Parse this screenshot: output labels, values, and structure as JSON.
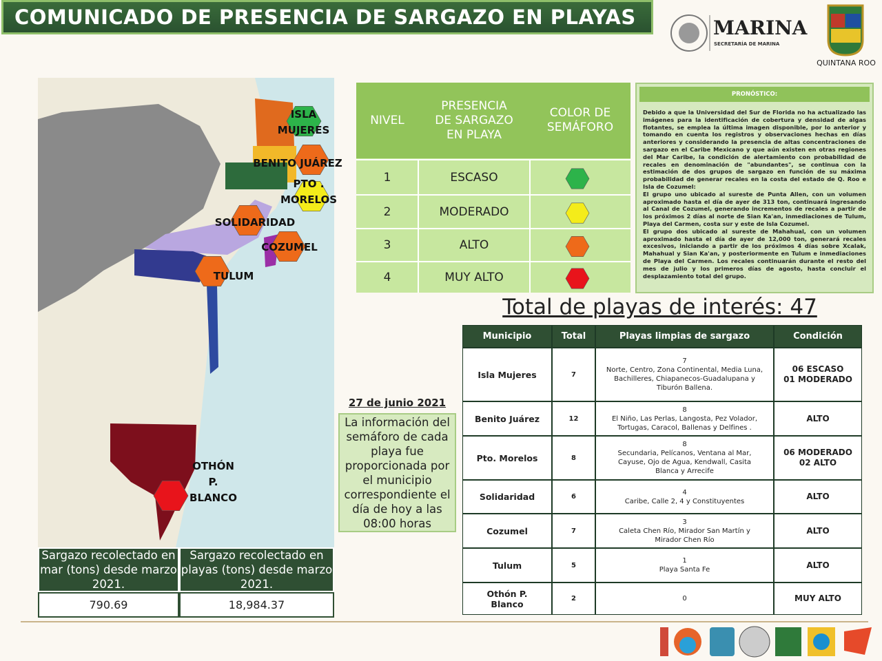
{
  "header": {
    "title": "COMUNICADO DE PRESENCIA DE SARGAZO EN PLAYAS",
    "marina": "MARINA",
    "marina_sub": "SECRETARÍA DE MARINA",
    "state": "QUINTANA ROO"
  },
  "map": {
    "labels": [
      "ISLA\nMUJERES",
      "BENITO JUÁREZ",
      "PTO .\nMORELOS",
      "SOLIDARIDAD",
      "COZUMEL",
      "TULUM",
      "OTHÓN P.\nBLANCO"
    ]
  },
  "legend": {
    "headers": [
      "NIVEL",
      "PRESENCIA\nDE SARGAZO\nEN PLAYA",
      "COLOR DE\nSEMÁFORO"
    ],
    "rows": [
      [
        "1",
        "ESCASO"
      ],
      [
        "2",
        "MODERADO"
      ],
      [
        "3",
        "ALTO"
      ],
      [
        "4",
        "MUY ALTO"
      ]
    ]
  },
  "forecast": {
    "title": "PRONÓSTICO:",
    "paragraphs": [
      "Debido a que la Universidad del Sur de Florida no ha actualizado las imágenes para la identificación de cobertura y densidad de algas flotantes, se emplea la última imagen disponible, por lo anterior y tomando en cuenta los registros y observaciones hechas en días anteriores y considerando la presencia de altas concentraciones de sargazo en el Caribe Mexicano y que aún existen en otras regiones del Mar Caribe, la condición de alertamiento con probabilidad de recales en denominación de \"abundantes\", se continua con la estimación de dos grupos de sargazo en función de su máxima probabilidad de generar recales en la costa del estado de Q. Roo e Isla de Cozumel:",
      "El grupo uno ubicado al sureste de Punta Allen, con un volumen aproximado hasta el día de ayer de 313 ton, continuará ingresando al Canal de Cozumel, generando incrementos de recales a partir de los próximos 2 días al norte de Sian Ka'an, inmediaciones de Tulum, Playa del Carmen, costa sur y este de Isla Cozumel.",
      "El grupo dos ubicado al sureste de Mahahual, con un volumen aproximado hasta el día de ayer de 12,000 ton, generará recales excesivos, iniciando a partir de los próximos 4 días sobre Xcalak, Mahahual y Sian Ka'an, y posteriormente en Tulum e inmediaciones de Playa del Carmen. Los recales continuarán durante el resto del mes de julio y los primeros días de agosto, hasta concluir el desplazamiento total del grupo."
    ]
  },
  "total": "Total de playas de interés: 47",
  "date": "27 de junio 2021",
  "note": "La información del semáforo de cada playa fue proporcionada por el municipio correspondiente el día de hoy a las 08:00 horas",
  "collected": {
    "headers": [
      "Sargazo recolectado en mar (tons) desde marzo 2021.",
      "Sargazo recolectado en playas (tons) desde marzo 2021."
    ],
    "values": [
      "790.69",
      "18,984.37"
    ]
  },
  "table": {
    "headers": [
      "Municipio",
      "Total",
      "Playas limpias de sargazo",
      "Condición"
    ],
    "rows": [
      [
        "Isla Mujeres",
        "7",
        "7",
        "Norte, Centro, Zona Continental, Media Luna, Bachilleres, Chiapanecos-Guadalupana y\nTiburón Ballena.",
        "06 ESCASO\n01 MODERADO"
      ],
      [
        "Benito Juárez",
        "12",
        "8",
        "El Niño, Las Perlas, Langosta, Pez Volador, Tortugas, Caracol, Ballenas y Delfines .",
        "ALTO"
      ],
      [
        "Pto. Morelos",
        "8",
        "8",
        "Secundaria, Pelícanos, Ventana al Mar, Cayuse, Ojo de Agua, Kendwall, Casita Blanca y Arrecife",
        "06 MODERADO\n02 ALTO"
      ],
      [
        "Solidaridad",
        "6",
        "4",
        "Caribe, Calle 2, 4 y Constituyentes",
        "ALTO"
      ],
      [
        "Cozumel",
        "7",
        "3",
        "Caleta Chen Río, Mirador San Martín y Mirador Chen Río",
        "ALTO"
      ],
      [
        "Tulum",
        "5",
        "1",
        "Playa Santa Fe",
        "ALTO"
      ],
      [
        "Othón P.\nBlanco",
        "2",
        "0",
        "",
        "MUY ALTO"
      ]
    ]
  }
}
